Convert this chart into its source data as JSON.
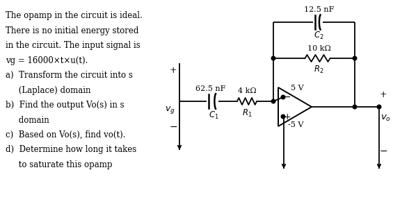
{
  "bg_color": "#ffffff",
  "text_color": "#000000",
  "text_lines": [
    [
      "The opamp in the circuit is ideal.",
      0
    ],
    [
      "There is no initial energy stored",
      0
    ],
    [
      "in the circuit. The input signal is",
      0
    ],
    [
      "vg = 16000×t×u(t).",
      0
    ],
    [
      "a)  Transform the circuit into s",
      0
    ],
    [
      "     (Laplace) domain",
      0
    ],
    [
      "b)  Find the output Vo(s) in s",
      0
    ],
    [
      "     domain",
      0
    ],
    [
      "c)  Based on Vo(s), find vo(t).",
      0
    ],
    [
      "d)  Determine how long it takes",
      0
    ],
    [
      "     to saturate this opamp",
      0
    ]
  ],
  "C1_label": "62.5 nF",
  "C1_sub": "C",
  "C1_sub_num": "1",
  "R1_label": "4 kΩ",
  "R1_sub": "R",
  "R1_sub_num": "1",
  "C2_label": "12.5 nF",
  "C2_sub": "C",
  "C2_sub_num": "2",
  "R2_label": "10 kΩ",
  "R2_sub": "R",
  "R2_sub_num": "2",
  "Vplus_label": "5 V",
  "Vminus_label": "-5 V",
  "vg_label": "v_g",
  "vo_label": "v_o",
  "plus_sign": "+",
  "minus_bar": "—"
}
